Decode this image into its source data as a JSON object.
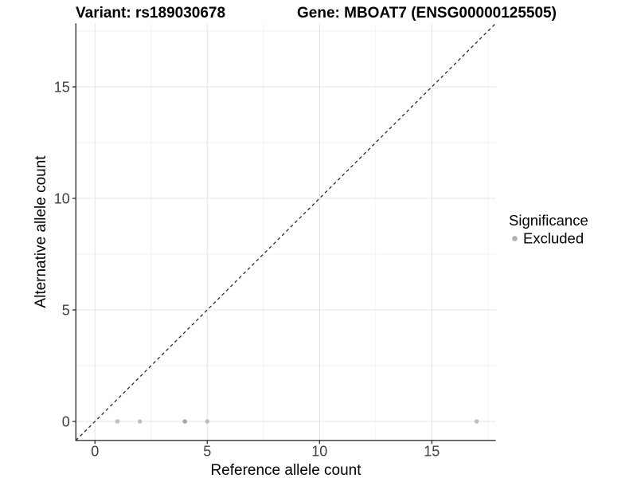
{
  "figure": {
    "titles": {
      "variant": "Variant: rs189030678",
      "gene": "Gene: MBOAT7 (ENSG00000125505)"
    }
  },
  "axes": {
    "x": {
      "label": "Reference allele count",
      "major_ticks": [
        0,
        5,
        10,
        15
      ],
      "minor_ticks": [
        2.5,
        7.5,
        12.5,
        17.5
      ],
      "range": [
        -0.85,
        17.85
      ]
    },
    "y": {
      "label": "Alternative allele count",
      "major_ticks": [
        0,
        5,
        10,
        15
      ],
      "minor_ticks": [
        2.5,
        7.5,
        12.5,
        17.5
      ],
      "range": [
        -0.85,
        17.85
      ]
    }
  },
  "legend": {
    "title": "Significance",
    "items": [
      {
        "label": "Excluded",
        "color": "#b2b2b2"
      }
    ]
  },
  "chart_data": {
    "type": "scatter",
    "title": "Variant: rs189030678 | Gene: MBOAT7 (ENSG00000125505)",
    "xlabel": "Reference allele count",
    "ylabel": "Alternative allele count",
    "xlim": [
      -0.85,
      17.85
    ],
    "ylim": [
      -0.85,
      17.85
    ],
    "grid": "on",
    "legend_position": "right",
    "series": [
      {
        "name": "Excluded",
        "color": "#bfbfbf",
        "point_radius": 2.8,
        "points": [
          {
            "x": 1,
            "y": 0
          },
          {
            "x": 2,
            "y": 0
          },
          {
            "x": 4,
            "y": 0,
            "color": "#a8a8a8"
          },
          {
            "x": 5,
            "y": 0
          },
          {
            "x": 17,
            "y": 0
          }
        ]
      }
    ],
    "reference_line": {
      "type": "identity",
      "style": "dashed",
      "color": "#1a1a1a"
    }
  },
  "colors": {
    "background": "#ffffff",
    "grid_major": "#e4e4e4",
    "grid_minor": "#f2f2f2",
    "axis_line": "#333333",
    "tick_mark": "#333333",
    "tick_label": "#404040",
    "title_text": "#000000"
  }
}
